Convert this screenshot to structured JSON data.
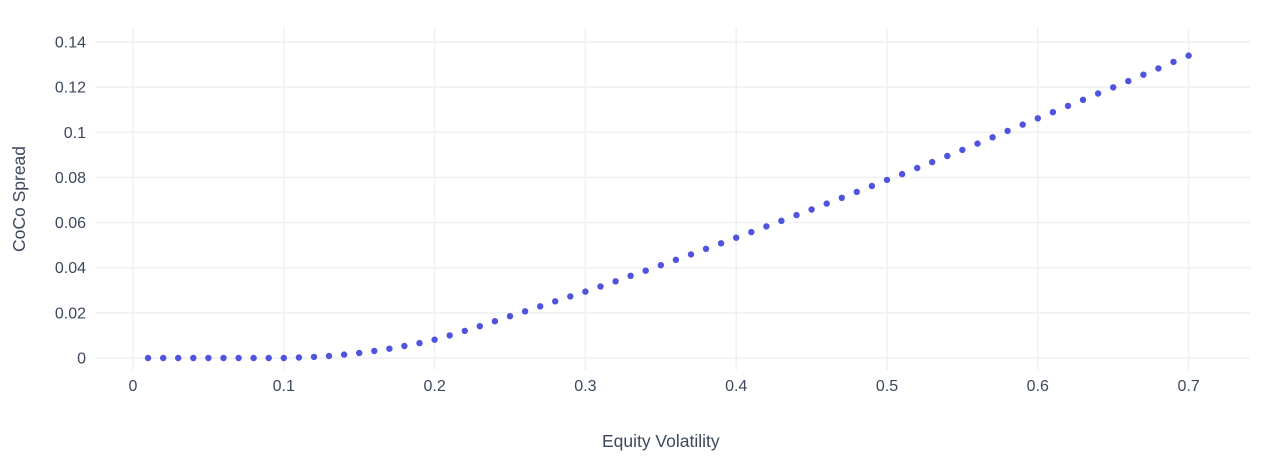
{
  "chart_data": {
    "type": "scatter",
    "title": "",
    "xlabel": "Equity Volatility",
    "ylabel": "CoCo Spread",
    "xlim": [
      -0.025,
      0.74
    ],
    "ylim": [
      -0.005,
      0.146
    ],
    "grid": true,
    "legend": "none",
    "x_tick_values": [
      0,
      0.1,
      0.2,
      0.3,
      0.4,
      0.5,
      0.6,
      0.7
    ],
    "x_tick_labels": [
      "0",
      "0.1",
      "0.2",
      "0.3",
      "0.4",
      "0.5",
      "0.6",
      "0.7"
    ],
    "y_tick_values": [
      0,
      0.02,
      0.04,
      0.06,
      0.08,
      0.1,
      0.12,
      0.14
    ],
    "y_tick_labels": [
      "0",
      "0.02",
      "0.04",
      "0.06",
      "0.08",
      "0.1",
      "0.12",
      "0.14"
    ],
    "series": [
      {
        "name": "coco-spread-vs-volatility",
        "marker": "circle",
        "x": [
          0.01,
          0.02,
          0.03,
          0.04,
          0.05,
          0.06,
          0.07,
          0.08,
          0.09,
          0.1,
          0.11,
          0.12,
          0.13,
          0.14,
          0.15,
          0.16,
          0.17,
          0.18,
          0.19,
          0.2,
          0.21,
          0.22,
          0.23,
          0.24,
          0.25,
          0.26,
          0.27,
          0.28,
          0.29,
          0.3,
          0.31,
          0.32,
          0.33,
          0.34,
          0.35,
          0.36,
          0.37,
          0.38,
          0.39,
          0.4,
          0.41,
          0.42,
          0.43,
          0.44,
          0.45,
          0.46,
          0.47,
          0.48,
          0.49,
          0.5,
          0.51,
          0.52,
          0.53,
          0.54,
          0.55,
          0.56,
          0.57,
          0.58,
          0.59,
          0.6,
          0.61,
          0.62,
          0.63,
          0.64,
          0.65,
          0.66,
          0.67,
          0.68,
          0.69,
          0.7
        ],
        "y": [
          0,
          0,
          0,
          0,
          0,
          0,
          0,
          0,
          0,
          0,
          0.0002,
          0.0005,
          0.0009,
          0.0015,
          0.0022,
          0.0031,
          0.0041,
          0.0053,
          0.0066,
          0.0081,
          0.01,
          0.012,
          0.0141,
          0.0163,
          0.0185,
          0.0207,
          0.0229,
          0.0251,
          0.0273,
          0.0294,
          0.0317,
          0.034,
          0.0364,
          0.0387,
          0.0411,
          0.0435,
          0.0459,
          0.0484,
          0.0508,
          0.0533,
          0.0558,
          0.0583,
          0.0608,
          0.0633,
          0.0658,
          0.0684,
          0.071,
          0.0736,
          0.0762,
          0.0789,
          0.0815,
          0.0842,
          0.0868,
          0.0895,
          0.0922,
          0.095,
          0.0978,
          0.1006,
          0.1034,
          0.1062,
          0.1089,
          0.1117,
          0.1144,
          0.1172,
          0.1199,
          0.1227,
          0.1255,
          0.1283,
          0.1312,
          0.134
        ]
      }
    ],
    "style": {
      "marker_color": "#4f53dd",
      "marker_diameter_px": 6.4,
      "grid_color": "#f0f1f3",
      "tick_text_color": "#3c485c",
      "axis_title_color": "#3c485c",
      "background_color": "#ffffff"
    }
  }
}
